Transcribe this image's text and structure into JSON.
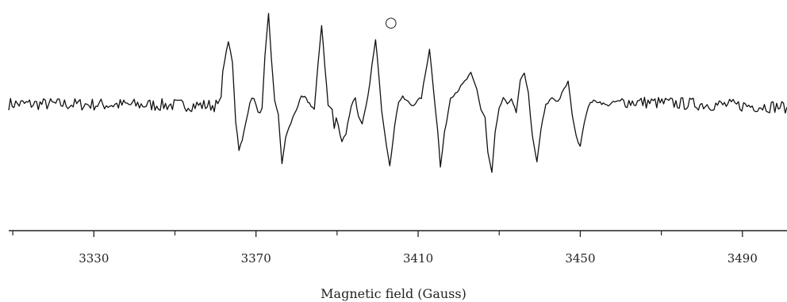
{
  "chart_data": {
    "type": "line",
    "title": "",
    "xlabel": "Magnetic field (Gauss)",
    "ylabel": "",
    "xlim": [
      3309,
      3501
    ],
    "x_ticks": [
      3330,
      3370,
      3410,
      3450,
      3490
    ],
    "x_tick_labels": [
      "3330",
      "3370",
      "3410",
      "3450",
      "3490"
    ],
    "x_minor_ticks": [
      3310,
      3350,
      3390,
      3430,
      3470
    ],
    "grid": false,
    "baseline_noise": {
      "range": [
        [
          3309,
          3362
        ],
        [
          3460,
          3501
        ]
      ],
      "amplitude": 0.08
    },
    "series": [
      {
        "points": [
          [
            3309,
            0.02
          ],
          [
            3361,
            0.0
          ],
          [
            3362.2,
            0.55
          ],
          [
            3363.2,
            0.8
          ],
          [
            3364.2,
            0.55
          ],
          [
            3365.0,
            -0.2
          ],
          [
            3365.8,
            -0.55
          ],
          [
            3366.6,
            -0.45
          ],
          [
            3368.5,
            0.05
          ],
          [
            3369.5,
            0.1
          ],
          [
            3370.5,
            -0.1
          ],
          [
            3371.5,
            -0.05
          ],
          [
            3372.2,
            0.6
          ],
          [
            3373.1,
            1.15
          ],
          [
            3373.8,
            0.6
          ],
          [
            3374.6,
            0.05
          ],
          [
            3375.5,
            -0.1
          ],
          [
            3376.4,
            -0.75
          ],
          [
            3377.3,
            -0.4
          ],
          [
            3379.5,
            -0.1
          ],
          [
            3381.2,
            0.1
          ],
          [
            3382.0,
            0.1
          ],
          [
            3384.4,
            -0.05
          ],
          [
            3385.3,
            0.5
          ],
          [
            3386.2,
            1.02
          ],
          [
            3387.0,
            0.5
          ],
          [
            3387.8,
            0.0
          ],
          [
            3388.8,
            -0.05
          ],
          [
            3389.3,
            -0.3
          ],
          [
            3389.8,
            -0.15
          ],
          [
            3391.2,
            -0.45
          ],
          [
            3392.2,
            -0.35
          ],
          [
            3393.5,
            0.0
          ],
          [
            3394.5,
            0.1
          ],
          [
            3395.3,
            -0.15
          ],
          [
            3396.2,
            -0.25
          ],
          [
            3397.6,
            0.1
          ],
          [
            3398.6,
            0.5
          ],
          [
            3399.5,
            0.82
          ],
          [
            3400.3,
            0.4
          ],
          [
            3401.0,
            -0.05
          ],
          [
            3401.8,
            -0.35
          ],
          [
            3403.0,
            -0.78
          ],
          [
            3404.2,
            -0.25
          ],
          [
            3405.2,
            0.05
          ],
          [
            3406.2,
            0.1
          ],
          [
            3408.5,
            0.0
          ],
          [
            3409.8,
            0.05
          ],
          [
            3410.8,
            0.1
          ],
          [
            3411.8,
            0.4
          ],
          [
            3412.8,
            0.72
          ],
          [
            3413.8,
            0.2
          ],
          [
            3414.8,
            -0.3
          ],
          [
            3415.5,
            -0.78
          ],
          [
            3416.5,
            -0.35
          ],
          [
            3418.0,
            0.1
          ],
          [
            3420.0,
            0.2
          ],
          [
            3421.5,
            0.3
          ],
          [
            3423.0,
            0.4
          ],
          [
            3424.5,
            0.2
          ],
          [
            3425.5,
            -0.05
          ],
          [
            3426.5,
            -0.15
          ],
          [
            3427.2,
            -0.6
          ],
          [
            3428.2,
            -0.85
          ],
          [
            3429.0,
            -0.35
          ],
          [
            3430.0,
            -0.05
          ],
          [
            3431.0,
            0.1
          ],
          [
            3432.0,
            0.0
          ],
          [
            3433.0,
            0.1
          ],
          [
            3434.2,
            -0.1
          ],
          [
            3435.2,
            0.3
          ],
          [
            3436.2,
            0.42
          ],
          [
            3437.2,
            0.15
          ],
          [
            3438.2,
            -0.4
          ],
          [
            3439.3,
            -0.72
          ],
          [
            3440.3,
            -0.3
          ],
          [
            3441.5,
            0.0
          ],
          [
            3443.0,
            0.1
          ],
          [
            3444.5,
            0.05
          ],
          [
            3446.0,
            0.2
          ],
          [
            3447.0,
            0.3
          ],
          [
            3448.0,
            -0.1
          ],
          [
            3449.0,
            -0.4
          ],
          [
            3450.0,
            -0.5
          ],
          [
            3451.0,
            -0.2
          ],
          [
            3452.5,
            0.05
          ],
          [
            3454.5,
            0.05
          ],
          [
            3456.5,
            0.0
          ],
          [
            3459.0,
            0.05
          ],
          [
            3501,
            -0.02
          ]
        ]
      }
    ],
    "annotations": [
      {
        "label": "○",
        "x": 3403.3
      }
    ]
  }
}
